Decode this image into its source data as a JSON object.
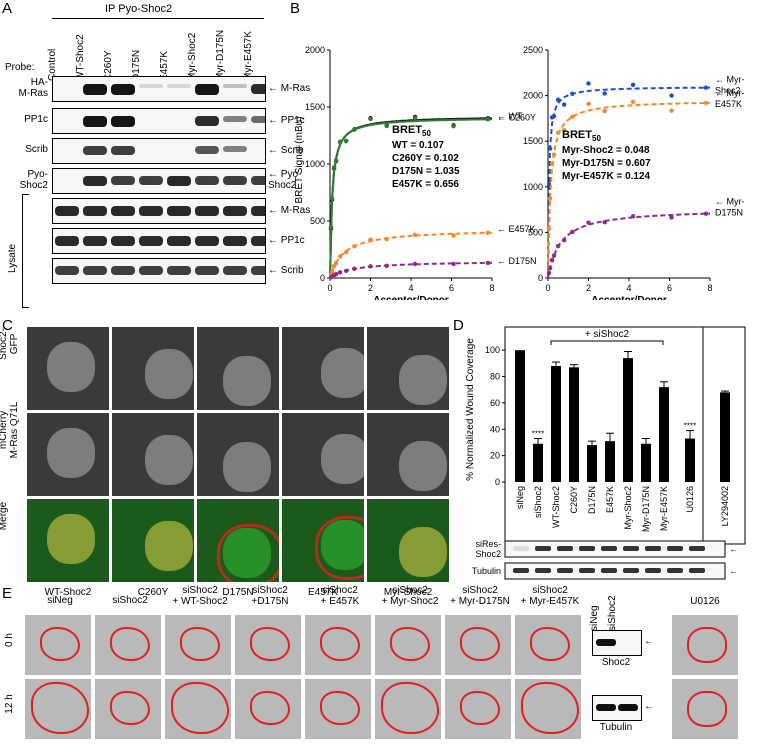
{
  "panel_labels": {
    "a": "A",
    "b": "B",
    "c": "C",
    "d": "D",
    "e": "E"
  },
  "panelA": {
    "ip_header": "IP Pyo-Shoc2",
    "probe_header": "Probe:",
    "lanes": [
      "Control",
      "WT-Shoc2",
      "C260Y",
      "D175N",
      "E457K",
      "Myr-Shoc2",
      "Myr-D175N",
      "Myr-E457K"
    ],
    "rows": [
      {
        "probe": "HA-\nM-Ras",
        "right": "M-Ras",
        "intensity": [
          0,
          1,
          1,
          0.1,
          0.1,
          1,
          0.2,
          0.9
        ]
      },
      {
        "probe": "PP1c",
        "right": "PP1c",
        "intensity": [
          0,
          1,
          1,
          0,
          0,
          0.9,
          0.5,
          0.6
        ]
      },
      {
        "probe": "Scrib",
        "right": "Scrib",
        "intensity": [
          0,
          0.8,
          0.8,
          0,
          0,
          0.7,
          0.5,
          0
        ]
      },
      {
        "probe": "Pyo-\nShoc2",
        "right": "Pyo-\nShoc2",
        "intensity": [
          0,
          0.9,
          0.8,
          0.8,
          0.9,
          0.8,
          0.8,
          0.8
        ]
      },
      {
        "probe": "",
        "right": "M-Ras",
        "intensity": [
          0.9,
          0.9,
          0.9,
          0.9,
          0.9,
          0.9,
          0.9,
          0.9
        ]
      },
      {
        "probe": "",
        "right": "PP1c",
        "intensity": [
          0.9,
          0.9,
          0.9,
          0.9,
          0.9,
          0.9,
          0.9,
          0.9
        ]
      },
      {
        "probe": "",
        "right": "Scrib",
        "intensity": [
          0.8,
          0.8,
          0.8,
          0.8,
          0.8,
          0.8,
          0.8,
          0.8
        ]
      }
    ],
    "lysate_label": "Lysate"
  },
  "panelB": {
    "ylabel": "BRET Signal (mBu)",
    "xlabel": "Acceptor/Donor",
    "left": {
      "yticks": [
        0,
        500,
        1000,
        1500,
        2000
      ],
      "xticks": [
        0,
        2,
        4,
        6,
        8
      ],
      "bret_title": "BRET",
      "bret_sub": "50",
      "bret_lines": [
        "WT     = 0.107",
        "C260Y  = 0.102",
        "D175N = 1.035",
        "E457K  = 0.656"
      ],
      "series": [
        {
          "name": "WT",
          "bmax": 1420,
          "kd": 0.107,
          "color": "#111111"
        },
        {
          "name": "C260Y",
          "bmax": 1410,
          "kd": 0.102,
          "color": "#2e7d32"
        },
        {
          "name": "E457K",
          "bmax": 430,
          "kd": 0.656,
          "color": "#f08a30"
        },
        {
          "name": "D175N",
          "bmax": 150,
          "kd": 1.035,
          "color": "#8e2a8e"
        }
      ]
    },
    "right": {
      "yticks": [
        0,
        500,
        1000,
        1500,
        2000,
        2500
      ],
      "xticks": [
        0,
        2,
        4,
        6,
        8
      ],
      "bret_title": "BRET",
      "bret_sub": "50",
      "bret_lines": [
        "Myr-Shoc2 = 0.048",
        "Myr-D175N = 0.607",
        "Myr-E457K = 0.124"
      ],
      "series": [
        {
          "name": "Myr-\nShoc2",
          "bmax": 2100,
          "kd": 0.048,
          "color": "#1e50c8"
        },
        {
          "name": "Myr-\nE457K",
          "bmax": 1950,
          "kd": 0.124,
          "color": "#f08a30"
        },
        {
          "name": "Myr-\nD175N",
          "bmax": 760,
          "kd": 0.607,
          "color": "#8e2a8e"
        }
      ]
    }
  },
  "panelC": {
    "row_labels": [
      "Shoc2-\nGFP",
      "mCherry\nM-Ras Q71L",
      "Merge"
    ],
    "col_labels": [
      "WT-Shoc2",
      "C260Y",
      "D175N",
      "E457K",
      "Myr-Shoc2"
    ]
  },
  "panelD": {
    "ylabel": "% Normalized Wound Coverage",
    "yticks": [
      0,
      20,
      40,
      60,
      80,
      100
    ],
    "bracket_label": "+ siShoc2",
    "categories": [
      "siNeg",
      "siShoc2",
      "WT-Shoc2",
      "C260Y",
      "D175N",
      "E457K",
      "Myr-Shoc2",
      "Myr-D175N",
      "Myr-E457K",
      "U0126",
      "LY294002"
    ],
    "values": [
      100,
      29,
      88,
      87,
      28,
      31,
      94,
      29,
      72,
      33,
      68
    ],
    "errors": [
      0,
      4,
      3,
      2,
      3,
      6,
      5,
      4,
      4,
      6,
      1
    ],
    "significance": [
      "",
      "****",
      "",
      "",
      "",
      "",
      "",
      "",
      "",
      "****",
      ""
    ],
    "blot_labels": [
      "siRes-\nShoc2",
      "Tubulin"
    ]
  },
  "panelE": {
    "col_labels": [
      "siNeg",
      "siShoc2",
      "siShoc2\n+ WT-Shoc2",
      "siShoc2\n+D175N",
      "siShoc2\n+ E457K",
      "siShoc2\n+ Myr-Shoc2",
      "siShoc2\n+ Myr-D175N",
      "siShoc2\n+ Myr-E457K"
    ],
    "row_labels": [
      "0 h",
      "12 h"
    ],
    "blot_lanes": [
      "siNeg",
      "siShoc2"
    ],
    "blot_labels": [
      "Shoc2",
      "Tubulin"
    ],
    "u0126_label": "U0126"
  }
}
